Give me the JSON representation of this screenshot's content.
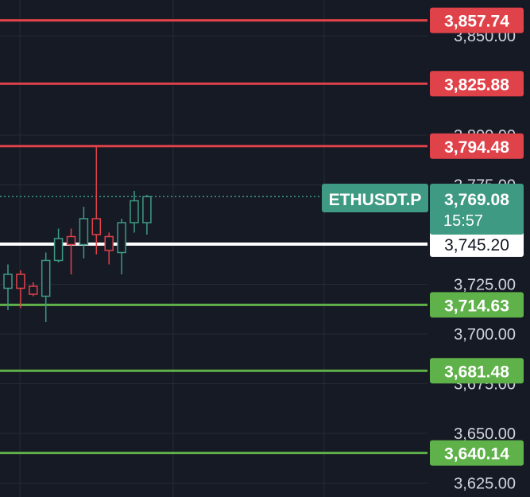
{
  "chart_data": {
    "type": "candlestick",
    "symbol": "ETHUSDT.P",
    "ylim": [
      3618,
      3868
    ],
    "y_ticks": [
      "3,625.00",
      "3,650.00",
      "3,675.00",
      "3,700.00",
      "3,725.00",
      "3,775.00",
      "3,800.00",
      "3,850.00"
    ],
    "y_tick_values": [
      3625,
      3650,
      3675,
      3700,
      3725,
      3775,
      3800,
      3850
    ],
    "grid": true,
    "candles": [
      {
        "open": 3723,
        "close": 3730,
        "high": 3735,
        "low": 3712,
        "dir": "up"
      },
      {
        "open": 3730,
        "close": 3723,
        "high": 3732,
        "low": 3713,
        "dir": "down"
      },
      {
        "open": 3724,
        "close": 3720,
        "high": 3726,
        "low": 3719,
        "dir": "down"
      },
      {
        "open": 3719,
        "close": 3737,
        "high": 3741,
        "low": 3706,
        "dir": "up"
      },
      {
        "open": 3737,
        "close": 3748,
        "high": 3753,
        "low": 3736,
        "dir": "up"
      },
      {
        "open": 3749,
        "close": 3745,
        "high": 3753,
        "low": 3730,
        "dir": "down"
      },
      {
        "open": 3745,
        "close": 3758,
        "high": 3764,
        "low": 3738,
        "dir": "up"
      },
      {
        "open": 3758,
        "close": 3750,
        "high": 3794.48,
        "low": 3740,
        "dir": "down"
      },
      {
        "open": 3749,
        "close": 3742,
        "high": 3751,
        "low": 3735,
        "dir": "down"
      },
      {
        "open": 3741,
        "close": 3756,
        "high": 3758,
        "low": 3730,
        "dir": "up"
      },
      {
        "open": 3756,
        "close": 3767,
        "high": 3772,
        "low": 3751,
        "dir": "up"
      },
      {
        "open": 3756,
        "close": 3769.08,
        "high": 3770,
        "low": 3750,
        "dir": "up"
      }
    ],
    "levels": [
      {
        "value": 3857.74,
        "label": "3,857.74",
        "color": "#e0424a"
      },
      {
        "value": 3825.88,
        "label": "3,825.88",
        "color": "#e0424a"
      },
      {
        "value": 3794.48,
        "label": "3,794.48",
        "color": "#e0424a"
      },
      {
        "value": 3745.2,
        "label": "3,745.20",
        "color": "#ffffff"
      },
      {
        "value": 3714.63,
        "label": "3,714.63",
        "color": "#5fb14a"
      },
      {
        "value": 3681.48,
        "label": "3,681.48",
        "color": "#5fb14a"
      },
      {
        "value": 3640.14,
        "label": "3,640.14",
        "color": "#5fb14a"
      }
    ],
    "current_price": {
      "value": 3769.08,
      "label": "3,769.08",
      "countdown": "15:57",
      "color": "#3f9a83"
    }
  },
  "colors": {
    "background": "#161a25",
    "grid": "#262a35",
    "up": "#3f9a83",
    "down": "#e0424a"
  }
}
